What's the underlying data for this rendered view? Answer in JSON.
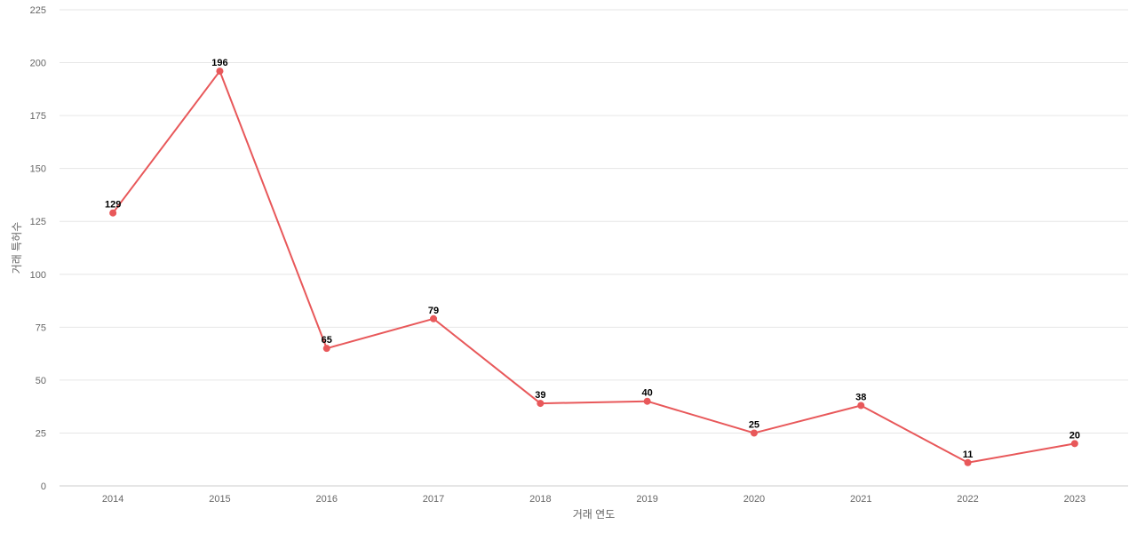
{
  "chart_data": {
    "type": "line",
    "xlabel": "거래 연도",
    "ylabel": "거래 특허수",
    "categories": [
      "2014",
      "2015",
      "2016",
      "2017",
      "2018",
      "2019",
      "2020",
      "2021",
      "2022",
      "2023"
    ],
    "series": [
      {
        "values": [
          129,
          196,
          65,
          79,
          39,
          40,
          25,
          38,
          11,
          20
        ],
        "color": "#e8585a"
      }
    ],
    "ylim": [
      0,
      225
    ],
    "yticks": [
      0,
      25,
      50,
      75,
      100,
      125,
      150,
      175,
      200,
      225
    ],
    "grid": true,
    "legend": "none",
    "data_labels": true
  }
}
